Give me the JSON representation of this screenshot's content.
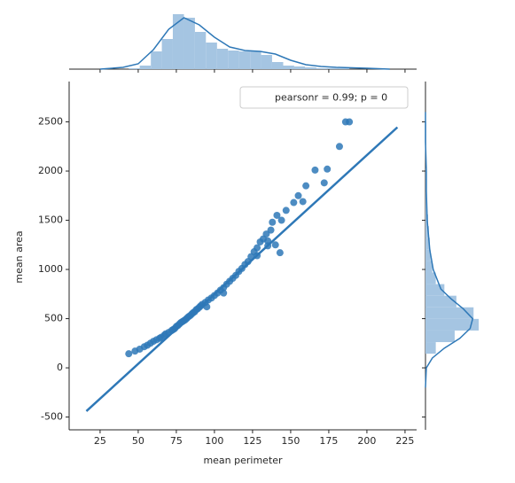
{
  "chart_data": {
    "type": "scatter",
    "xlabel": "mean perimeter",
    "ylabel": "mean area",
    "annotation": "pearsonr = 0.99; p = 0",
    "color": "#2e78b7",
    "xlim": [
      4.7,
      232.6
    ],
    "ylim": [
      -630,
      2910
    ],
    "xticks": [
      25,
      50,
      75,
      100,
      125,
      150,
      175,
      200,
      225
    ],
    "yticks": [
      -500,
      0,
      500,
      1000,
      1500,
      2000,
      2500
    ],
    "x": [
      43.8,
      47.9,
      51,
      54,
      56,
      58,
      60,
      62,
      64,
      65,
      67,
      68,
      70,
      72,
      73,
      74,
      75,
      76,
      77,
      78,
      79,
      80,
      81,
      82,
      83,
      84,
      85,
      86,
      87,
      88,
      89,
      90,
      91,
      92,
      94,
      95,
      96,
      98,
      100,
      102,
      104,
      106,
      106,
      108,
      110,
      112,
      114,
      116,
      118,
      120,
      122,
      124,
      126,
      128,
      128,
      130,
      132,
      134,
      135,
      135,
      137,
      138,
      140,
      141,
      143,
      144,
      147,
      152,
      155,
      158,
      160,
      166,
      172,
      174,
      182,
      186,
      188.5
    ],
    "values": [
      143,
      170,
      190,
      215,
      230,
      250,
      270,
      285,
      300,
      310,
      330,
      345,
      360,
      380,
      390,
      400,
      420,
      430,
      445,
      460,
      470,
      480,
      490,
      505,
      520,
      530,
      545,
      560,
      570,
      590,
      600,
      615,
      630,
      645,
      665,
      620,
      690,
      710,
      735,
      760,
      790,
      815,
      760,
      850,
      880,
      910,
      940,
      980,
      1010,
      1050,
      1080,
      1130,
      1180,
      1220,
      1140,
      1280,
      1310,
      1360,
      1240,
      1290,
      1400,
      1480,
      1250,
      1550,
      1170,
      1500,
      1600,
      1680,
      1750,
      1690,
      1850,
      2010,
      1880,
      2020,
      2250,
      2500,
      2500
    ],
    "fit": {
      "x": [
        16,
        220
      ],
      "values": [
        -440,
        2445
      ]
    },
    "x_marginal": {
      "type": "histogram",
      "bins": [
        43.8,
        51.0,
        58.3,
        65.5,
        72.7,
        80.0,
        87.2,
        94.4,
        101.7,
        108.9,
        116.1,
        123.4,
        130.6,
        137.8,
        145.1,
        152.3,
        159.5,
        166.8,
        174.0,
        181.2,
        188.5
      ],
      "counts": [
        1,
        4,
        20,
        34,
        62,
        58,
        42,
        30,
        23,
        21,
        20,
        20,
        16,
        8,
        4,
        3,
        2,
        1,
        1,
        1
      ],
      "ylim": [
        0,
        66
      ],
      "kde": {
        "x": [
          25,
          40,
          50,
          60,
          70,
          80,
          90,
          100,
          110,
          120,
          130,
          140,
          150,
          160,
          170,
          180,
          200,
          215
        ],
        "values": [
          0,
          2,
          6,
          22,
          45,
          58,
          50,
          36,
          25,
          21,
          20,
          17,
          10,
          5,
          3,
          2,
          1,
          0
        ]
      }
    },
    "y_marginal": {
      "type": "histogram",
      "bins": [
        143.5,
        261.4,
        379.3,
        497.2,
        615.1,
        733.0,
        850.9,
        968.8,
        1086.7,
        1204.6,
        1322.5,
        1440.4,
        1558.3,
        1676.2,
        1794.1,
        1912.0,
        2029.9,
        2147.8,
        2265.7,
        2383.6,
        2501.5
      ],
      "counts": [
        12,
        34,
        62,
        56,
        36,
        22,
        12,
        8,
        6,
        5,
        4,
        3,
        2,
        1,
        1,
        1,
        0,
        0,
        1,
        1
      ],
      "xlim": [
        0,
        64
      ],
      "kde": {
        "x": [
          -200,
          0,
          100,
          200,
          300,
          400,
          500,
          600,
          700,
          800,
          1000,
          1200,
          1500,
          1800,
          2000,
          2300,
          2600
        ],
        "values": [
          0,
          1,
          8,
          22,
          40,
          52,
          55,
          44,
          30,
          18,
          9,
          5,
          2,
          1,
          1,
          0,
          0
        ]
      }
    }
  }
}
